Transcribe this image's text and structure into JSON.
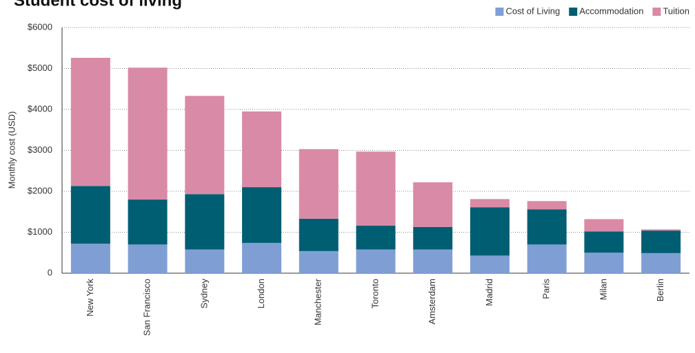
{
  "chart_data": {
    "type": "stacked_bar",
    "title": "Student cost of living",
    "y_label": "Monthly cost (USD)",
    "categories": [
      "New York",
      "San Francisco",
      "Sydney",
      "London",
      "Manchester",
      "Toronto",
      "Amsterdam",
      "Madrid",
      "Paris",
      "Milan",
      "Berlin"
    ],
    "series": [
      {
        "name": "Cost of Living",
        "color": "#7f9fd4",
        "values": [
          720,
          700,
          580,
          740,
          540,
          580,
          580,
          430,
          700,
          500,
          490
        ]
      },
      {
        "name": "Accommodation",
        "color": "#005e73",
        "values": [
          1410,
          1100,
          1350,
          1360,
          790,
          580,
          550,
          1180,
          860,
          520,
          550
        ]
      },
      {
        "name": "Tuition",
        "color": "#d98aa6",
        "values": [
          3130,
          3220,
          2400,
          1850,
          1700,
          1810,
          1090,
          200,
          200,
          300,
          30
        ]
      }
    ],
    "ylim": [
      0,
      6000
    ],
    "yticks": [
      0,
      {
        "value": 1000,
        "label": "$1000"
      },
      {
        "value": 2000,
        "label": "$2000"
      },
      {
        "value": 3000,
        "label": "$3000"
      },
      {
        "value": 4000,
        "label": "$4000"
      },
      {
        "value": 5000,
        "label": "$5000"
      },
      {
        "value": 6000,
        "label": "$6000"
      }
    ],
    "grid": true,
    "legend": "top-right"
  }
}
